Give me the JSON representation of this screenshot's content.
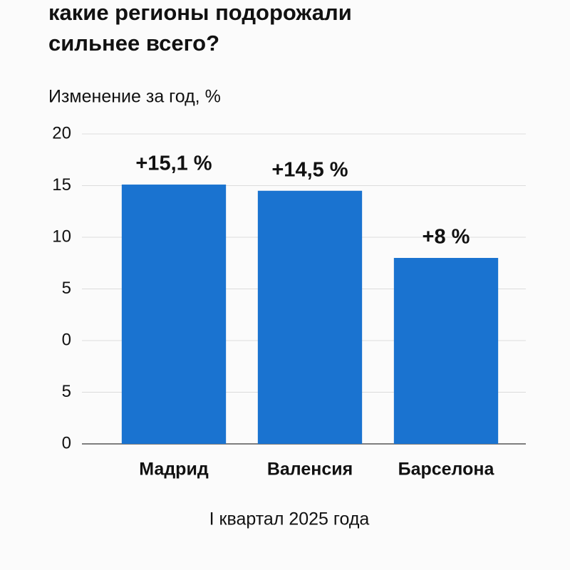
{
  "chart_data": {
    "type": "bar",
    "title": [
      "какие регионы подорожали",
      "сильнее всего?"
    ],
    "subtitle": "Изменение за год, %",
    "x_label": "I квартал 2025 года",
    "categories": [
      "Мадрид",
      "Валенсия",
      "Барселона"
    ],
    "values": [
      15.1,
      14.5,
      8
    ],
    "value_labels": [
      "+15,1 %",
      "+14,5 %",
      "+8 %"
    ],
    "color": "#1a73d0",
    "ylim": [
      -10,
      20
    ],
    "yticks": [
      20,
      15,
      10,
      5,
      0,
      {
        "value": -5,
        "label": "5"
      },
      {
        "value": -10,
        "label": "0"
      }
    ],
    "grid": true
  }
}
